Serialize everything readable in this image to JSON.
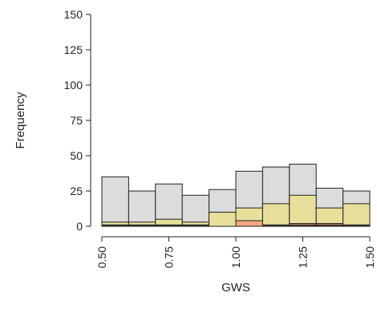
{
  "chart_data": {
    "type": "bar",
    "subtype": "histogram-overlaid",
    "title": "",
    "xlabel": "GWS",
    "ylabel": "Frequency",
    "xlim": [
      0.5,
      1.5
    ],
    "ylim": [
      0,
      150
    ],
    "x_ticks": [
      "0.50",
      "0.75",
      "1.00",
      "1.25",
      "1.50"
    ],
    "y_ticks": [
      "0",
      "25",
      "50",
      "75",
      "100",
      "125",
      "150"
    ],
    "bin_edges": [
      0.5,
      0.6,
      0.7,
      0.8,
      0.9,
      1.0,
      1.1,
      1.2,
      1.3,
      1.4,
      1.5
    ],
    "series": [
      {
        "color": "#dcdcdc",
        "values": [
          35,
          25,
          30,
          22,
          26,
          39,
          42,
          44,
          27,
          25
        ]
      },
      {
        "color": "#e8e09a",
        "values": [
          3,
          3,
          5,
          3,
          10,
          13,
          16,
          22,
          13,
          16
        ]
      },
      {
        "color": "#f4a582",
        "values": [
          0,
          0,
          0,
          0,
          0,
          4,
          0,
          2,
          2,
          0
        ]
      },
      {
        "color": "#3a3a3a",
        "values": [
          1,
          1,
          1,
          1,
          0,
          0,
          1,
          1,
          1,
          1
        ]
      }
    ],
    "grid": false,
    "legend": "none"
  }
}
